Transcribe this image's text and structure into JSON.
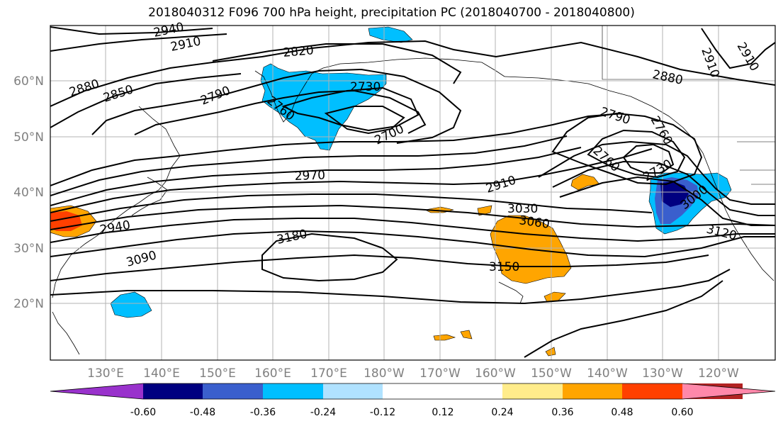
{
  "title": "2018040312 F096 700 hPa height, precipitation PC (2018040700 - 2018040800)",
  "lat_labels": [
    "60°N",
    "50°N",
    "40°N",
    "30°N",
    "20°N"
  ],
  "lon_labels": [
    "130°E",
    "140°E",
    "150°E",
    "160°E",
    "170°E",
    "180°W",
    "170°W",
    "160°W",
    "150°W",
    "140°W",
    "130°W",
    "120°W"
  ],
  "contour_labels": [
    "2940",
    "2910",
    "2820",
    "2880",
    "2850",
    "2790",
    "2760",
    "2730",
    "2700",
    "2970",
    "2910",
    "3030",
    "3060",
    "3150",
    "3180",
    "3090",
    "2940",
    "2790",
    "2760",
    "2730",
    "3000",
    "3120",
    "2880",
    "2910",
    "2910",
    "2760"
  ],
  "colorbar": {
    "colors": [
      "#9932cc",
      "#000080",
      "#3a5fcd",
      "#00bfff",
      "#b0e2ff",
      "#ffffff",
      "#ffffff",
      "#ffec8b",
      "#ffa500",
      "#ff4000",
      "#b22222",
      "#ff88aa"
    ],
    "ticks": [
      "-0.60",
      "-0.48",
      "-0.36",
      "-0.24",
      "-0.12",
      "0.12",
      "0.24",
      "0.36",
      "0.48",
      "0.60"
    ]
  }
}
